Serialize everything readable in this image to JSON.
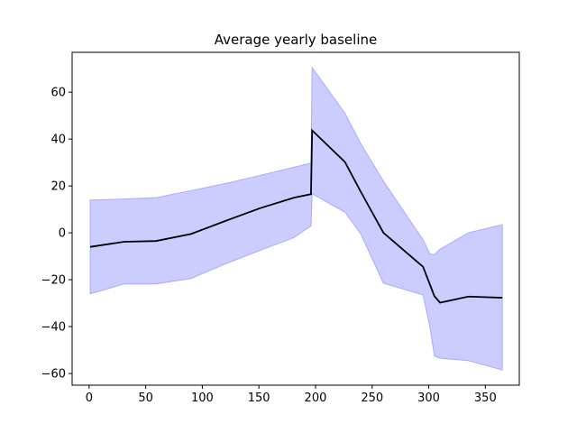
{
  "chart_data": {
    "type": "line",
    "title": "Average yearly baseline",
    "xlabel": "",
    "ylabel": "",
    "xlim": [
      -15,
      380
    ],
    "ylim": [
      -65,
      77
    ],
    "x_ticks": [
      0,
      50,
      100,
      150,
      200,
      250,
      300,
      350
    ],
    "y_ticks": [
      -60,
      -40,
      -20,
      0,
      20,
      40,
      60
    ],
    "grid": false,
    "legend": "none",
    "colors": {
      "line": "#000000",
      "band_fill": "#ccccff",
      "band_edge": "#aaaaff",
      "axes": "#000000"
    },
    "series": [
      {
        "type": "line",
        "x": [
          1,
          31,
          59,
          90,
          120,
          151,
          181,
          196,
          197,
          226,
          240,
          260,
          295,
          305,
          310,
          335,
          365
        ],
        "values": [
          -6,
          -3.8,
          -3.5,
          -0.5,
          5,
          10.5,
          15,
          16.5,
          43.7,
          30.2,
          17.5,
          0,
          -14.5,
          -27,
          -29.8,
          -27.2,
          -27.7
        ]
      },
      {
        "type": "band",
        "x": [
          1,
          31,
          59,
          90,
          120,
          151,
          181,
          196,
          197,
          226,
          240,
          260,
          295,
          301,
          305,
          310,
          335,
          365
        ],
        "upper": [
          14,
          14.4,
          15,
          18,
          21,
          24.5,
          28,
          29.7,
          70.5,
          51,
          38,
          22,
          -3,
          -9,
          -9.3,
          -7,
          0,
          3.5
        ],
        "lower": [
          -26,
          -21.8,
          -21.8,
          -19.5,
          -13.3,
          -7.5,
          -2,
          3,
          16.7,
          8.8,
          -0.5,
          -21.5,
          -26.5,
          -40,
          -52.5,
          -53.5,
          -54.5,
          -58.5
        ]
      }
    ]
  }
}
